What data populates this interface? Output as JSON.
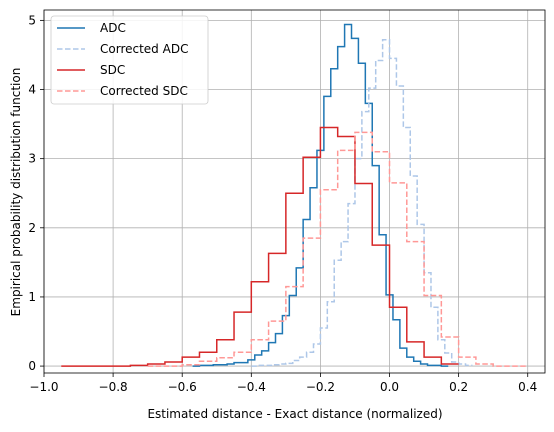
{
  "chart_data": {
    "type": "line",
    "step": true,
    "xlabel": "Estimated distance - Exact distance (normalized)",
    "ylabel": "Empirical probability distribution function",
    "xlim": [
      -1.0,
      0.45
    ],
    "ylim": [
      -0.1,
      5.15
    ],
    "xticks": [
      -1.0,
      -0.8,
      -0.6,
      -0.4,
      -0.2,
      0.0,
      0.2,
      0.4
    ],
    "xtick_labels": [
      "−1.0",
      "−0.8",
      "−0.6",
      "−0.4",
      "−0.2",
      "0.0",
      "0.2",
      "0.4"
    ],
    "yticks": [
      0,
      1,
      2,
      3,
      4,
      5
    ],
    "ytick_labels": [
      "0",
      "1",
      "2",
      "3",
      "4",
      "5"
    ],
    "grid": true,
    "legend_position": "top-left",
    "series": [
      {
        "name": "ADC",
        "color": "#1f77b4",
        "dash": "solid",
        "edges": [
          -0.57,
          -0.55,
          -0.53,
          -0.51,
          -0.49,
          -0.47,
          -0.45,
          -0.43,
          -0.41,
          -0.39,
          -0.37,
          -0.35,
          -0.33,
          -0.31,
          -0.29,
          -0.27,
          -0.25,
          -0.23,
          -0.21,
          -0.19,
          -0.17,
          -0.15,
          -0.13,
          -0.11,
          -0.09,
          -0.07,
          -0.05,
          -0.03,
          -0.01,
          0.01,
          0.03,
          0.05,
          0.07,
          0.09,
          0.11,
          0.13,
          0.15,
          0.17
        ],
        "values": [
          0.0,
          0.01,
          0.01,
          0.02,
          0.02,
          0.03,
          0.05,
          0.05,
          0.09,
          0.16,
          0.22,
          0.34,
          0.47,
          0.73,
          1.02,
          1.42,
          2.12,
          2.58,
          3.12,
          3.9,
          4.3,
          4.62,
          4.94,
          4.74,
          4.38,
          3.8,
          2.9,
          1.9,
          1.03,
          0.67,
          0.26,
          0.13,
          0.07,
          0.03,
          0.01,
          0.01,
          0.0
        ]
      },
      {
        "name": "Corrected ADC",
        "color": "#aec7e8",
        "dash": "dashed",
        "edges": [
          -0.4,
          -0.38,
          -0.36,
          -0.34,
          -0.32,
          -0.3,
          -0.28,
          -0.26,
          -0.24,
          -0.22,
          -0.2,
          -0.18,
          -0.16,
          -0.14,
          -0.12,
          -0.1,
          -0.08,
          -0.06,
          -0.04,
          -0.02,
          0.0,
          0.02,
          0.04,
          0.06,
          0.08,
          0.1,
          0.12,
          0.14,
          0.16,
          0.18,
          0.2,
          0.22,
          0.24
        ],
        "values": [
          0.0,
          0.01,
          0.01,
          0.02,
          0.03,
          0.04,
          0.08,
          0.13,
          0.2,
          0.32,
          0.55,
          0.93,
          1.53,
          1.8,
          2.35,
          3.0,
          3.68,
          4.02,
          4.42,
          4.72,
          4.45,
          4.05,
          3.45,
          2.75,
          2.05,
          1.35,
          0.85,
          0.38,
          0.19,
          0.06,
          0.03,
          0.01
        ]
      },
      {
        "name": "SDC",
        "color": "#d62728",
        "dash": "solid",
        "edges": [
          -0.95,
          -0.75,
          -0.7,
          -0.65,
          -0.6,
          -0.55,
          -0.5,
          -0.45,
          -0.4,
          -0.35,
          -0.3,
          -0.25,
          -0.2,
          -0.15,
          -0.1,
          -0.05,
          0.0,
          0.05,
          0.1,
          0.15,
          0.2
        ],
        "values": [
          0.0,
          0.01,
          0.03,
          0.06,
          0.13,
          0.2,
          0.38,
          0.78,
          1.22,
          1.63,
          2.5,
          3.02,
          3.45,
          3.32,
          2.64,
          1.75,
          0.85,
          0.35,
          0.13,
          0.03
        ]
      },
      {
        "name": "Corrected SDC",
        "color": "#ff9896",
        "dash": "dashed",
        "edges": [
          -0.7,
          -0.6,
          -0.55,
          -0.5,
          -0.45,
          -0.4,
          -0.35,
          -0.3,
          -0.25,
          -0.2,
          -0.15,
          -0.1,
          -0.05,
          0.0,
          0.05,
          0.1,
          0.15,
          0.2,
          0.25,
          0.3,
          0.4
        ],
        "values": [
          0.0,
          0.02,
          0.07,
          0.12,
          0.2,
          0.38,
          0.65,
          1.15,
          1.85,
          2.55,
          3.12,
          3.38,
          3.1,
          2.65,
          1.8,
          1.02,
          0.42,
          0.13,
          0.03,
          0.0
        ]
      }
    ]
  }
}
